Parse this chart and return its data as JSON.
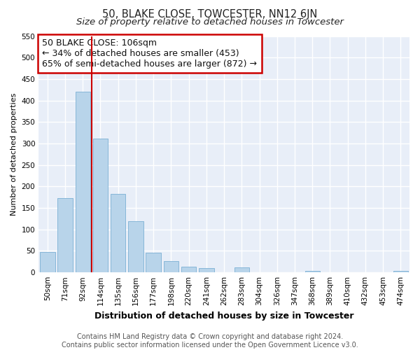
{
  "title": "50, BLAKE CLOSE, TOWCESTER, NN12 6JN",
  "subtitle": "Size of property relative to detached houses in Towcester",
  "xlabel": "Distribution of detached houses by size in Towcester",
  "ylabel": "Number of detached properties",
  "categories": [
    "50sqm",
    "71sqm",
    "92sqm",
    "114sqm",
    "135sqm",
    "156sqm",
    "177sqm",
    "198sqm",
    "220sqm",
    "241sqm",
    "262sqm",
    "283sqm",
    "304sqm",
    "326sqm",
    "347sqm",
    "368sqm",
    "389sqm",
    "410sqm",
    "432sqm",
    "453sqm",
    "474sqm"
  ],
  "values": [
    47,
    173,
    420,
    311,
    183,
    120,
    46,
    27,
    14,
    10,
    0,
    11,
    0,
    0,
    0,
    4,
    0,
    0,
    0,
    0,
    3
  ],
  "bar_color": "#b8d4ea",
  "bar_edge_color": "#7bafd4",
  "vline_x_index": 2.5,
  "vline_color": "#cc0000",
  "ylim": [
    0,
    550
  ],
  "yticks": [
    0,
    50,
    100,
    150,
    200,
    250,
    300,
    350,
    400,
    450,
    500,
    550
  ],
  "annotation_title": "50 BLAKE CLOSE: 106sqm",
  "annotation_line1": "← 34% of detached houses are smaller (453)",
  "annotation_line2": "65% of semi-detached houses are larger (872) →",
  "annotation_box_facecolor": "#ffffff",
  "annotation_box_edgecolor": "#cc0000",
  "footer1": "Contains HM Land Registry data © Crown copyright and database right 2024.",
  "footer2": "Contains public sector information licensed under the Open Government Licence v3.0.",
  "fig_facecolor": "#ffffff",
  "plot_facecolor": "#e8eef8",
  "title_fontsize": 10.5,
  "subtitle_fontsize": 9.5,
  "annotation_fontsize": 9,
  "xlabel_fontsize": 9,
  "ylabel_fontsize": 8,
  "footer_fontsize": 7,
  "tick_fontsize": 7.5
}
